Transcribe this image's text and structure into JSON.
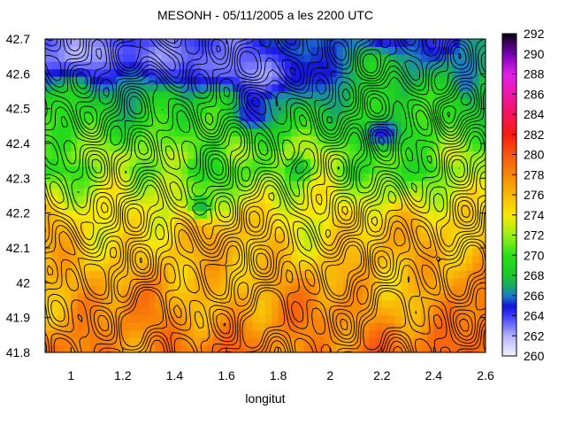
{
  "chart_data": {
    "type": "heatmap",
    "title": "MESONH - 05/11/2005 a les 2200 UTC",
    "xlabel": "longitut",
    "ylabel": "",
    "xlim": [
      0.9,
      2.6
    ],
    "ylim": [
      41.8,
      42.7
    ],
    "x_ticks": [
      1,
      1.2,
      1.4,
      1.6,
      1.8,
      2,
      2.2,
      2.4,
      2.6
    ],
    "y_ticks": [
      41.8,
      41.9,
      42,
      42.1,
      42.2,
      42.3,
      42.4,
      42.5,
      42.6,
      42.7
    ],
    "colorbar": {
      "range": [
        260,
        292
      ],
      "ticks": [
        260,
        262,
        264,
        266,
        268,
        270,
        272,
        274,
        276,
        278,
        280,
        282,
        284,
        286,
        288,
        290,
        292
      ],
      "stops": [
        {
          "v": 260,
          "color": "#f4f4ff"
        },
        {
          "v": 262,
          "color": "#b4b4ff"
        },
        {
          "v": 264,
          "color": "#3a3aff"
        },
        {
          "v": 265,
          "color": "#1414d8"
        },
        {
          "v": 266,
          "color": "#1c7ec8"
        },
        {
          "v": 267,
          "color": "#18a868"
        },
        {
          "v": 268,
          "color": "#1cc82c"
        },
        {
          "v": 270,
          "color": "#28e018"
        },
        {
          "v": 272,
          "color": "#9aee18"
        },
        {
          "v": 274,
          "color": "#f8e808"
        },
        {
          "v": 276,
          "color": "#f8b808"
        },
        {
          "v": 278,
          "color": "#f88808"
        },
        {
          "v": 280,
          "color": "#f85810"
        },
        {
          "v": 282,
          "color": "#f81c10"
        },
        {
          "v": 284,
          "color": "#f41458"
        },
        {
          "v": 286,
          "color": "#ee18a8"
        },
        {
          "v": 288,
          "color": "#e020e8"
        },
        {
          "v": 290,
          "color": "#7800b8"
        },
        {
          "v": 292,
          "color": "#0a0010"
        }
      ]
    },
    "cold_centers": [
      {
        "lon": 1.05,
        "lat": 42.66,
        "value": 262,
        "sx": 0.22,
        "sy": 0.07
      },
      {
        "lon": 1.35,
        "lat": 42.65,
        "value": 262,
        "sx": 0.12,
        "sy": 0.06
      },
      {
        "lon": 1.55,
        "lat": 42.63,
        "value": 263,
        "sx": 0.13,
        "sy": 0.07
      },
      {
        "lon": 1.75,
        "lat": 42.6,
        "value": 262,
        "sx": 0.14,
        "sy": 0.07
      },
      {
        "lon": 2.0,
        "lat": 42.62,
        "value": 265,
        "sx": 0.12,
        "sy": 0.07
      },
      {
        "lon": 1.7,
        "lat": 42.48,
        "value": 264,
        "sx": 0.08,
        "sy": 0.05
      },
      {
        "lon": 2.2,
        "lat": 42.43,
        "value": 264,
        "sx": 0.09,
        "sy": 0.05
      },
      {
        "lon": 1.5,
        "lat": 42.22,
        "value": 265,
        "sx": 0.04,
        "sy": 0.03
      },
      {
        "lon": 1.88,
        "lat": 42.33,
        "value": 266,
        "sx": 0.04,
        "sy": 0.03
      },
      {
        "lon": 2.45,
        "lat": 42.5,
        "value": 270,
        "sx": 0.06,
        "sy": 0.05
      },
      {
        "lon": 2.18,
        "lat": 42.62,
        "value": 270,
        "sx": 0.08,
        "sy": 0.06
      }
    ]
  }
}
